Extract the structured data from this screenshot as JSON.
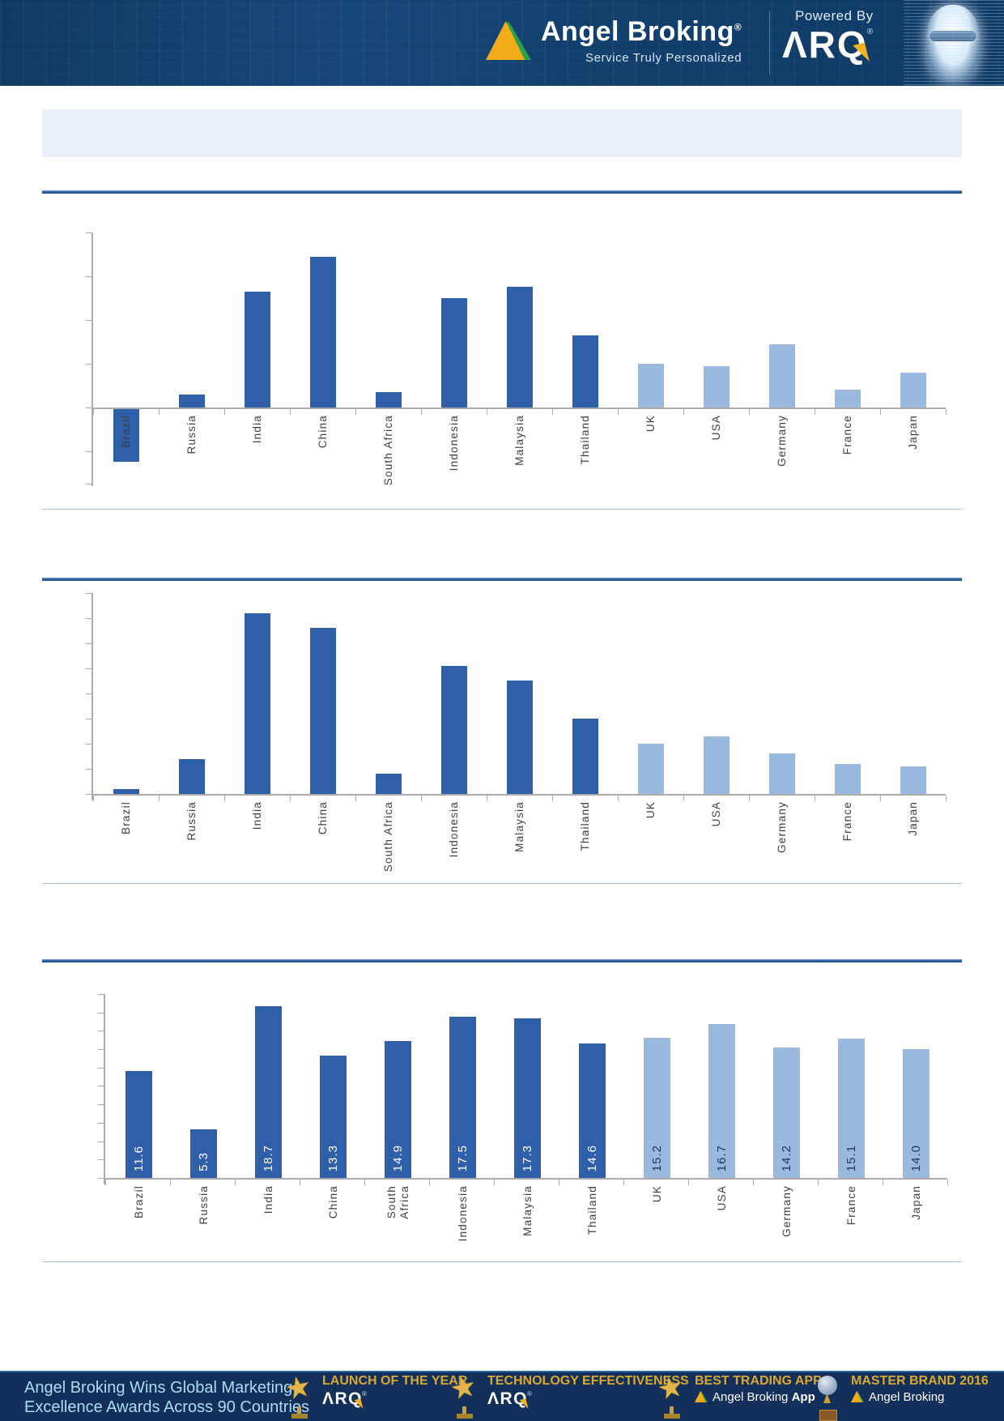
{
  "header": {
    "brand": "Angel Broking",
    "registered": "®",
    "tagline": "Service Truly Personalized",
    "powered_by": "Powered By",
    "product": "ARQ",
    "product_registered": "®",
    "logo_icon": "angel-broking-pyramid-icon",
    "head_icon": "holographic-head-icon"
  },
  "title_banner": {
    "text": ""
  },
  "chart_data": [
    {
      "type": "bar",
      "title": "",
      "xlabel": "",
      "ylabel": "",
      "categories": [
        "Brazil",
        "Russia",
        "India",
        "China",
        "South Africa",
        "Indonesia",
        "Malaysia",
        "Thailand",
        "UK",
        "USA",
        "Germany",
        "France",
        "Japan"
      ],
      "values": [
        -2.4,
        0.6,
        5.3,
        6.9,
        0.7,
        5.0,
        5.5,
        3.3,
        2.0,
        1.9,
        2.9,
        0.8,
        1.6
      ],
      "ylim": [
        -4,
        8
      ],
      "y_tick_step": 2,
      "y_tick_labels_visible": false,
      "grid": false,
      "legend": "none",
      "colors": {
        "dark": "#2f5fa8",
        "light": "#9ab9df"
      },
      "light_start_index": 8
    },
    {
      "type": "bar",
      "title": "",
      "xlabel": "",
      "ylabel": "",
      "categories": [
        "Brazil",
        "Russia",
        "India",
        "China",
        "South Africa",
        "Indonesia",
        "Malaysia",
        "Thailand",
        "UK",
        "USA",
        "Germany",
        "France",
        "Japan"
      ],
      "values": [
        0.2,
        1.4,
        7.2,
        6.6,
        0.8,
        5.1,
        4.5,
        3.0,
        2.0,
        2.3,
        1.6,
        1.2,
        1.1
      ],
      "ylim": [
        0,
        8
      ],
      "y_tick_step": 1,
      "y_tick_labels_visible": false,
      "grid": false,
      "legend": "none",
      "colors": {
        "dark": "#2f5fa8",
        "light": "#9ab9df"
      },
      "light_start_index": 8
    },
    {
      "type": "bar",
      "title": "",
      "xlabel": "",
      "ylabel": "",
      "categories": [
        "Brazil",
        "Russia",
        "India",
        "China",
        "South Africa",
        "Indonesia",
        "Malaysia",
        "Thailand",
        "UK",
        "USA",
        "Germany",
        "France",
        "Japan"
      ],
      "values": [
        11.6,
        5.3,
        18.7,
        13.3,
        14.9,
        17.5,
        17.3,
        14.6,
        15.2,
        16.7,
        14.2,
        15.1,
        14.0
      ],
      "value_labels": [
        "11.6",
        "5.3",
        "18.7",
        "13.3",
        "14.9",
        "17.5",
        "17.3",
        "14.6",
        "15.2",
        "16.7",
        "14.2",
        "15.1",
        "14.0"
      ],
      "ylim": [
        0,
        20
      ],
      "y_tick_step": 2,
      "y_tick_labels_visible": false,
      "grid": false,
      "legend": "none",
      "colors": {
        "dark": "#2f5fa8",
        "light": "#9ab9df"
      },
      "value_label_colors": {
        "on_dark": "#ffffff",
        "on_light": "#1f3864"
      },
      "light_start_index": 8
    }
  ],
  "footer": {
    "message_line1": "Angel Broking Wins Global Marketing",
    "message_line2": "Excellence Awards Across 90 Countries",
    "badges": [
      {
        "icon": "star-trophy-icon",
        "title": "LAUNCH OF THE YEAR",
        "subtitle": "ARQ",
        "registered": "®"
      },
      {
        "icon": "star-trophy-icon",
        "title": "TECHNOLOGY EFFECTIVENESS",
        "subtitle": "ARQ",
        "registered": "®"
      },
      {
        "icon": "star-trophy-icon",
        "title": "BEST TRADING APP",
        "subtitle": "Angel Broking",
        "subtitle_bold": "App"
      },
      {
        "icon": "globe-trophy-icon",
        "title": "MASTER BRAND 2016",
        "subtitle": "Angel Broking"
      }
    ]
  },
  "colors": {
    "header_bg": "#123f6c",
    "footer_bg": "#12305a",
    "bar_dark": "#2f5fa8",
    "bar_light": "#9ab9df",
    "axis_gray": "#ababab",
    "section_rule": "#2a5c9e",
    "thin_rule": "#a9c2da",
    "title_banner_bg": "#e9eff6",
    "badge_gold": "#d9a733",
    "footer_text": "#aedcf2",
    "bolt_yellow": "#f2b321",
    "logo_gold": "#f3ac19",
    "logo_green": "#2ea14c"
  }
}
